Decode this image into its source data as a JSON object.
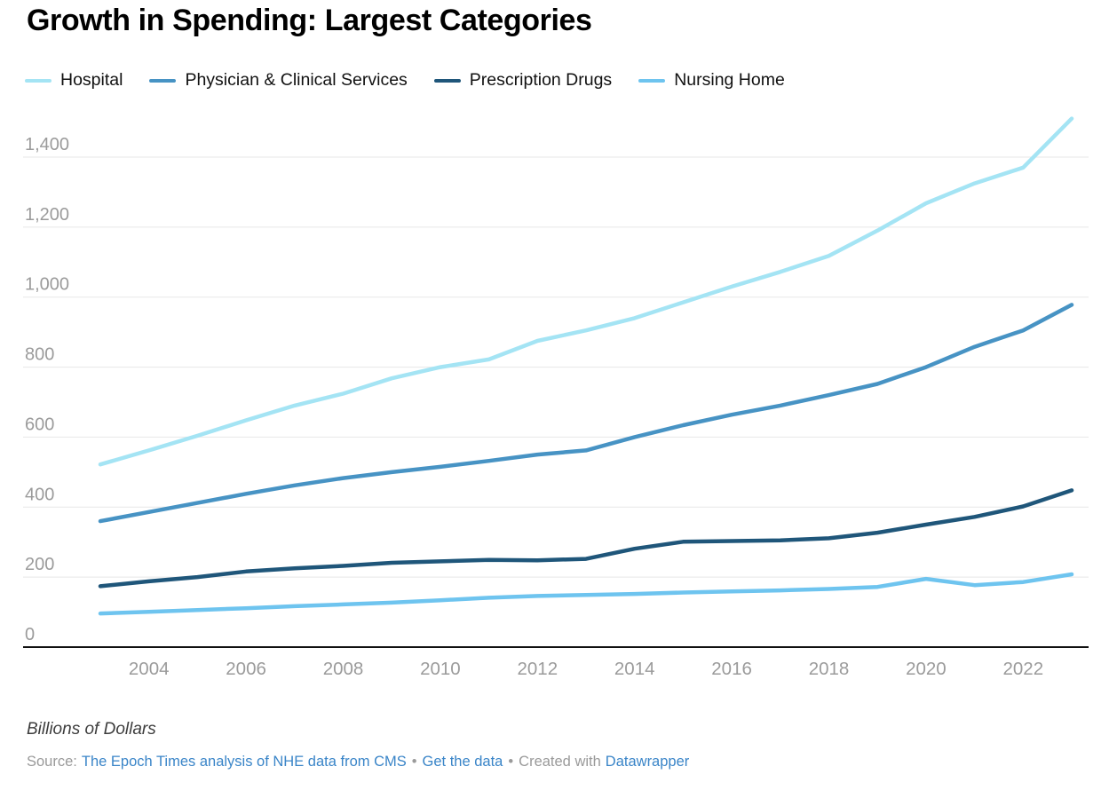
{
  "header": {
    "title": "Growth in Spending: Largest Categories"
  },
  "legend": {
    "items": [
      {
        "label": "Hospital",
        "color": "#a4e4f4"
      },
      {
        "label": "Physician & Clinical Services",
        "color": "#4793c4"
      },
      {
        "label": "Prescription Drugs",
        "color": "#1f567a"
      },
      {
        "label": "Nursing Home",
        "color": "#6ec4ef"
      }
    ]
  },
  "chart_data": {
    "type": "line",
    "title": "Growth in Spending: Largest Categories",
    "unit_note": "Billions of Dollars",
    "grid": "horizontal",
    "legend_position": "top",
    "xlim": [
      2003,
      2023
    ],
    "ylim": [
      0,
      1530
    ],
    "x": [
      2003,
      2004,
      2005,
      2006,
      2007,
      2008,
      2009,
      2010,
      2011,
      2012,
      2013,
      2014,
      2015,
      2016,
      2017,
      2018,
      2019,
      2020,
      2021,
      2022,
      2023
    ],
    "x_ticks": [
      2004,
      2006,
      2008,
      2010,
      2012,
      2014,
      2016,
      2018,
      2020,
      2022
    ],
    "y_ticks": [
      0,
      200,
      400,
      600,
      800,
      1000,
      1200,
      1400
    ],
    "series": [
      {
        "name": "Hospital",
        "color": "#a4e4f4",
        "values": [
          522,
          562,
          604,
          648,
          690,
          724,
          768,
          800,
          822,
          875,
          905,
          940,
          985,
          1030,
          1072,
          1118,
          1190,
          1268,
          1325,
          1370,
          1510
        ]
      },
      {
        "name": "Physician & Clinical Services",
        "color": "#4793c4",
        "values": [
          360,
          386,
          412,
          438,
          462,
          483,
          500,
          515,
          532,
          550,
          562,
          600,
          634,
          664,
          690,
          720,
          752,
          800,
          858,
          905,
          978
        ]
      },
      {
        "name": "Prescription Drugs",
        "color": "#1f567a",
        "values": [
          174,
          188,
          200,
          216,
          225,
          232,
          241,
          245,
          249,
          248,
          252,
          281,
          301,
          303,
          305,
          311,
          327,
          350,
          372,
          402,
          448
        ]
      },
      {
        "name": "Nursing Home",
        "color": "#6ec4ef",
        "values": [
          96,
          101,
          106,
          111,
          117,
          122,
          127,
          134,
          141,
          146,
          149,
          152,
          156,
          159,
          162,
          166,
          172,
          195,
          177,
          186,
          208
        ]
      }
    ]
  },
  "footer": {
    "unit_note": "Billions of Dollars",
    "source_prefix": "Source:",
    "source_link": "The Epoch Times analysis of NHE data from CMS",
    "separator": "•",
    "get_data_link": "Get the data",
    "created_with_prefix": "Created with",
    "created_with_link": "Datawrapper"
  },
  "colors": {
    "grid": "#e7e7e7",
    "axis": "#111111",
    "tick_label": "#9b9b9b",
    "link": "#3a85c8",
    "title": "#000000"
  }
}
